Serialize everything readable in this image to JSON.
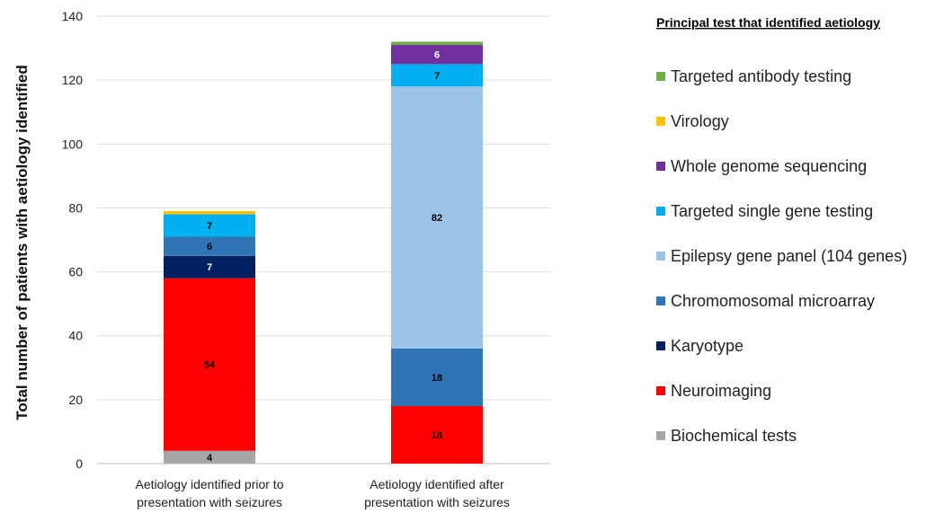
{
  "chart_data": {
    "type": "bar",
    "stacked": true,
    "categories": [
      "Aetiology identified prior to presentation with seizures",
      "Aetiology identified after presentation with seizures"
    ],
    "category_label_lines": [
      [
        "Aetiology identified prior to",
        "presentation with seizures"
      ],
      [
        "Aetiology identified after",
        "presentation with seizures"
      ]
    ],
    "series": [
      {
        "name": "Biochemical tests",
        "color": "#a6a6a6",
        "values": [
          4,
          0
        ],
        "labels": [
          "4",
          ""
        ],
        "label_color": "#000000"
      },
      {
        "name": "Neuroimaging",
        "color": "#ff0000",
        "values": [
          54,
          18
        ],
        "labels": [
          "54",
          "18"
        ],
        "label_color": "#000000"
      },
      {
        "name": "Karyotype",
        "color": "#002060",
        "values": [
          7,
          0
        ],
        "labels": [
          "7",
          ""
        ],
        "label_color": "#ffffff"
      },
      {
        "name": "Chromomosomal microarray",
        "color": "#2e75b6",
        "values": [
          6,
          18
        ],
        "labels": [
          "6",
          "18"
        ],
        "label_color": "#000000"
      },
      {
        "name": "Epilepsy gene panel (104 genes)",
        "color": "#9dc3e6",
        "values": [
          0,
          82
        ],
        "labels": [
          "",
          "82"
        ],
        "label_color": "#000000"
      },
      {
        "name": "Targeted single gene testing",
        "color": "#00b0f0",
        "values": [
          7,
          7
        ],
        "labels": [
          "7",
          "7"
        ],
        "label_color": "#000000"
      },
      {
        "name": "Whole genome sequencing",
        "color": "#7030a0",
        "values": [
          0,
          6
        ],
        "labels": [
          "",
          "6"
        ],
        "label_color": "#ffffff"
      },
      {
        "name": "Virology",
        "color": "#ffc000",
        "values": [
          1,
          0
        ],
        "labels": [
          "",
          ""
        ],
        "label_color": "#000000"
      },
      {
        "name": "Targeted antibody testing",
        "color": "#70ad47",
        "values": [
          0,
          1
        ],
        "labels": [
          "",
          ""
        ],
        "label_color": "#000000"
      }
    ],
    "ylabel": "Total number of patients with aetiology identified",
    "ylim": [
      0,
      140
    ],
    "yticks": [
      0,
      20,
      40,
      60,
      80,
      100,
      120,
      140
    ],
    "grid": true,
    "legend": {
      "title": "Principal test that identified aetiology",
      "placement": "right",
      "order": [
        "Targeted antibody testing",
        "Virology",
        "Whole genome sequencing",
        "Targeted single gene testing",
        "Epilepsy gene panel (104 genes)",
        "Chromomosomal microarray",
        "Karyotype",
        "Neuroimaging",
        "Biochemical tests"
      ]
    }
  }
}
